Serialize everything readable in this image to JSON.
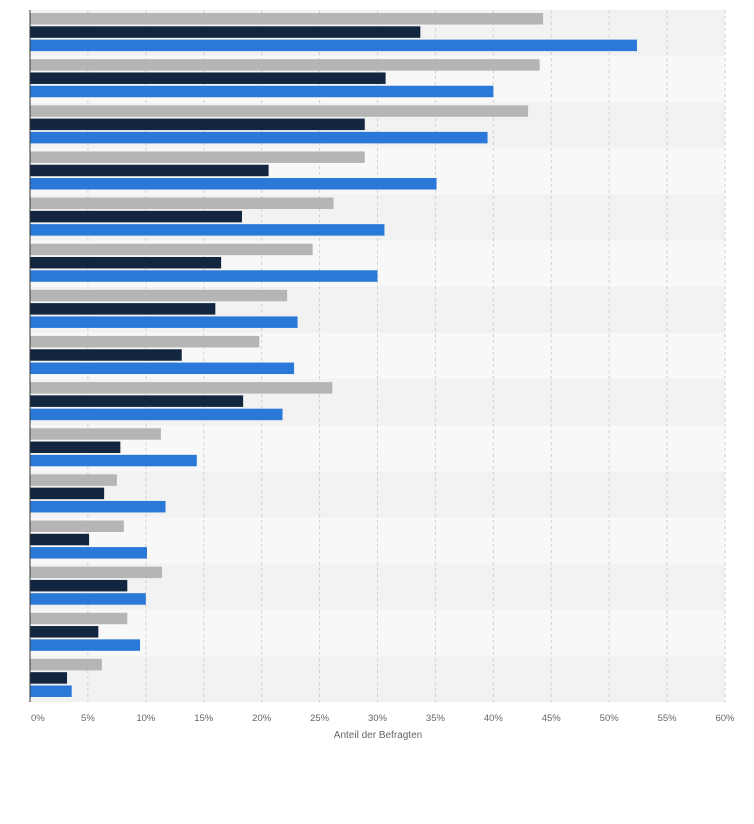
{
  "chart_data": {
    "type": "bar",
    "orientation": "horizontal",
    "categories": [
      "",
      "",
      "",
      "",
      "",
      "",
      "",
      "",
      "",
      "",
      "",
      "",
      "",
      "",
      ""
    ],
    "series": [
      {
        "color": "#b5b5b5",
        "values": [
          44.3,
          44.0,
          43.0,
          28.9,
          26.2,
          24.4,
          22.2,
          19.8,
          26.1,
          11.3,
          7.5,
          8.1,
          11.4,
          8.4,
          6.2
        ]
      },
      {
        "color": "#13263f",
        "values": [
          33.7,
          30.7,
          28.9,
          20.6,
          18.3,
          16.5,
          16.0,
          13.1,
          18.4,
          7.8,
          6.4,
          5.1,
          8.4,
          5.9,
          3.2
        ]
      },
      {
        "color": "#2a79d9",
        "values": [
          52.4,
          40.0,
          39.5,
          35.1,
          30.6,
          30.0,
          23.1,
          22.8,
          21.8,
          14.4,
          11.7,
          10.1,
          10.0,
          9.5,
          3.6
        ]
      }
    ],
    "xlabel": "Anteil der Befragten",
    "xlim": [
      0,
      60
    ],
    "xticks": [
      "0%",
      "5%",
      "10%",
      "15%",
      "20%",
      "25%",
      "30%",
      "35%",
      "40%",
      "45%",
      "50%",
      "55%",
      "60%"
    ],
    "grid": true,
    "legend": "none"
  }
}
